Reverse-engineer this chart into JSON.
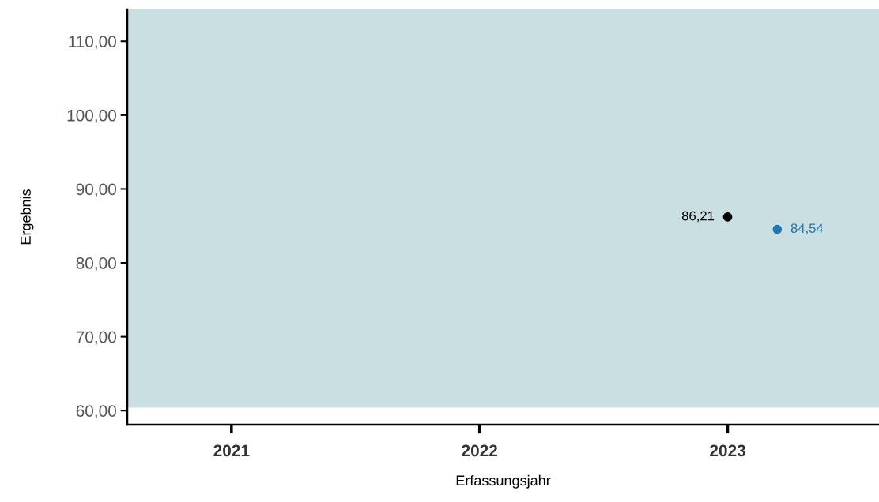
{
  "chart_data": {
    "type": "scatter",
    "xlabel": "Erfassungsjahr",
    "ylabel": "Ergebnis",
    "xlim": [
      2020.58,
      2023.61
    ],
    "xticks": [
      2021,
      2022,
      2023
    ],
    "ylim": [
      58.1,
      114.3
    ],
    "yticks": [
      {
        "value": 60,
        "label": "60,00"
      },
      {
        "value": 70,
        "label": "70,00"
      },
      {
        "value": 80,
        "label": "80,00"
      },
      {
        "value": 90,
        "label": "90,00"
      },
      {
        "value": 100,
        "label": "100,00"
      },
      {
        "value": 110,
        "label": "110,00"
      }
    ],
    "series": [
      {
        "color": "#000000",
        "x": [
          2023
        ],
        "values": [
          86.21
        ],
        "value_labels": [
          "86,21"
        ]
      },
      {
        "color": "#1f78b4",
        "x": [
          2023.2
        ],
        "values": [
          84.54
        ],
        "value_labels": [
          "84,54"
        ]
      }
    ],
    "bands": [
      {
        "axis": "y",
        "from": 60.4,
        "to": 114.3,
        "color": "#cadfe1"
      }
    ],
    "marker": "circle",
    "grid": false,
    "legend": false
  }
}
